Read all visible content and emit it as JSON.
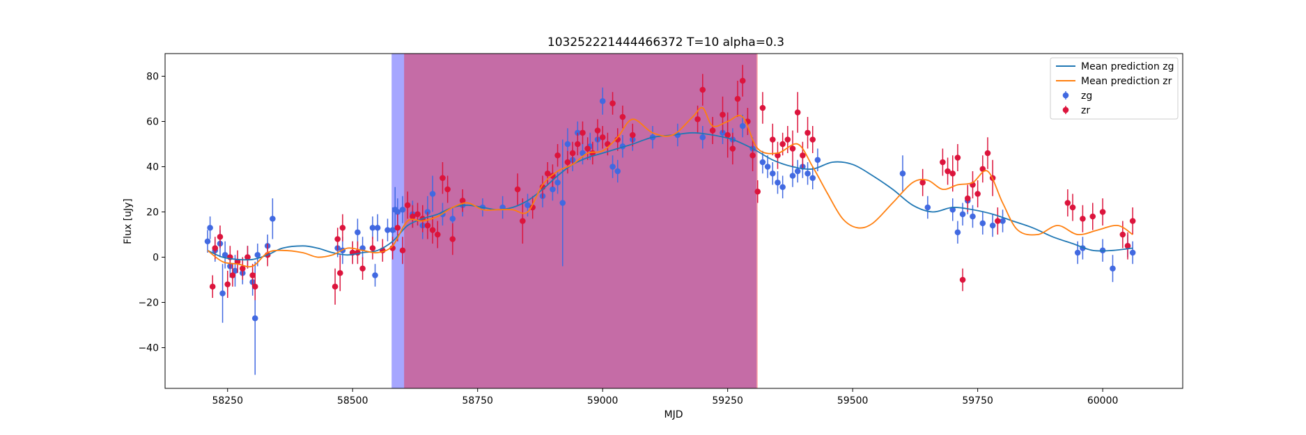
{
  "chart_data": {
    "type": "scatter",
    "title": "103252221444466372 T=10 alpha=0.3",
    "xlabel": "MJD",
    "ylabel": "Flux [uJy]",
    "xlim": [
      58125,
      60160
    ],
    "ylim": [
      -58,
      90
    ],
    "x_ticks": [
      58250,
      58500,
      58750,
      59000,
      59250,
      59500,
      59750,
      60000
    ],
    "y_ticks": [
      -40,
      -20,
      0,
      20,
      40,
      60,
      80
    ],
    "grid": false,
    "legend_position": "top-right",
    "shaded_regions": [
      {
        "band": "zg",
        "x_start": 58578,
        "x_end": 59308,
        "color": "#0000ff",
        "opacity": 0.35
      },
      {
        "band": "zr",
        "x_start": 58603,
        "x_end": 59310,
        "color": "#ff0000",
        "opacity": 0.35
      }
    ],
    "lines": [
      {
        "name": "Mean prediction zg",
        "color": "#1f77b4",
        "x": [
          58210,
          58240,
          58270,
          58300,
          58330,
          58360,
          58400,
          58430,
          58460,
          58490,
          58520,
          58550,
          58580,
          58610,
          58640,
          58670,
          58700,
          58730,
          58760,
          58790,
          58820,
          58850,
          58880,
          58910,
          58940,
          58970,
          59000,
          59030,
          59060,
          59100,
          59140,
          59180,
          59220,
          59260,
          59300,
          59340,
          59380,
          59420,
          59460,
          59500,
          59540,
          59580,
          59620,
          59660,
          59700,
          59740,
          59780,
          59820,
          59860,
          59900,
          59940,
          59980,
          60020,
          60060
        ],
        "y": [
          3,
          0,
          -1,
          -1,
          1,
          4,
          5,
          4,
          2,
          1,
          2,
          3,
          7,
          14,
          17,
          19,
          22,
          23,
          22,
          21,
          22,
          25,
          30,
          36,
          41,
          44,
          46,
          48,
          50,
          53,
          54,
          55,
          54,
          52,
          48,
          43,
          40,
          39,
          42,
          41,
          36,
          30,
          23,
          20,
          22,
          21,
          19,
          16,
          13,
          9,
          6,
          3,
          3,
          4
        ]
      },
      {
        "name": "Mean prediction zr",
        "color": "#ff7f0e",
        "x": [
          58210,
          58240,
          58270,
          58300,
          58330,
          58360,
          58400,
          58430,
          58460,
          58490,
          58520,
          58550,
          58580,
          58610,
          58640,
          58670,
          58700,
          58730,
          58760,
          58790,
          58820,
          58850,
          58880,
          58910,
          58940,
          58970,
          59000,
          59030,
          59060,
          59100,
          59140,
          59180,
          59200,
          59220,
          59250,
          59280,
          59310,
          59350,
          59390,
          59420,
          59450,
          59480,
          59510,
          59540,
          59580,
          59620,
          59650,
          59680,
          59710,
          59740,
          59770,
          59800,
          59830,
          59870,
          59910,
          59950,
          59990,
          60030,
          60060
        ],
        "y": [
          3,
          -2,
          -3,
          -4,
          2,
          3,
          2,
          0,
          1,
          4,
          3,
          2,
          5,
          16,
          16,
          18,
          22,
          24,
          21,
          21,
          21,
          20,
          32,
          38,
          41,
          46,
          47,
          53,
          61,
          55,
          54,
          62,
          66,
          58,
          60,
          62,
          48,
          46,
          50,
          40,
          28,
          17,
          13,
          15,
          24,
          33,
          34,
          30,
          32,
          33,
          38,
          24,
          12,
          10,
          14,
          10,
          12,
          14,
          10
        ]
      }
    ],
    "series": [
      {
        "name": "zg",
        "color": "#4169e1",
        "x": [
          58210,
          58215,
          58225,
          58235,
          58240,
          58245,
          58255,
          58265,
          58280,
          58290,
          58300,
          58305,
          58310,
          58330,
          58340,
          58470,
          58480,
          58500,
          58510,
          58520,
          58540,
          58545,
          58550,
          58570,
          58580,
          58585,
          58590,
          58600,
          58620,
          58640,
          58650,
          58660,
          58680,
          58700,
          58720,
          58760,
          58800,
          58850,
          58880,
          58900,
          58910,
          58920,
          58930,
          58940,
          58950,
          58960,
          58975,
          58990,
          59000,
          59020,
          59030,
          59040,
          59060,
          59100,
          59150,
          59200,
          59240,
          59260,
          59280,
          59300,
          59320,
          59330,
          59340,
          59350,
          59360,
          59380,
          59390,
          59400,
          59410,
          59420,
          59430,
          59600,
          59650,
          59700,
          59710,
          59720,
          59730,
          59740,
          59760,
          59780,
          59800,
          59950,
          59960,
          60000,
          60020,
          60050,
          60060
        ],
        "y": [
          7,
          13,
          3,
          6,
          -16,
          1,
          -4,
          -6,
          -7,
          0,
          -11,
          -27,
          1,
          5,
          17,
          4,
          3,
          2,
          11,
          4,
          13,
          -8,
          13,
          12,
          12,
          21,
          20,
          21,
          19,
          14,
          20,
          28,
          19,
          17,
          23,
          22,
          22,
          23,
          27,
          30,
          33,
          24,
          50,
          43,
          55,
          46,
          49,
          52,
          69,
          40,
          38,
          49,
          52,
          53,
          54,
          53,
          55,
          52,
          58,
          48,
          42,
          40,
          37,
          33,
          31,
          36,
          38,
          40,
          37,
          35,
          43,
          37,
          22,
          21,
          11,
          19,
          25,
          18,
          15,
          14,
          16,
          2,
          4,
          3,
          -5,
          5,
          2
        ],
        "yerr": [
          5,
          5,
          5,
          6,
          13,
          6,
          5,
          7,
          5,
          5,
          6,
          25,
          5,
          5,
          9,
          4,
          6,
          5,
          6,
          5,
          5,
          5,
          6,
          5,
          10,
          10,
          6,
          6,
          6,
          6,
          7,
          8,
          5,
          5,
          5,
          4,
          5,
          5,
          5,
          5,
          5,
          28,
          7,
          5,
          5,
          5,
          6,
          5,
          6,
          5,
          5,
          5,
          5,
          5,
          5,
          5,
          5,
          5,
          5,
          5,
          5,
          5,
          5,
          5,
          5,
          5,
          5,
          5,
          5,
          5,
          5,
          8,
          5,
          5,
          5,
          5,
          6,
          5,
          5,
          5,
          5,
          5,
          5,
          5,
          6,
          5,
          5
        ]
      },
      {
        "name": "zr",
        "color": "#dc143c",
        "x": [
          58220,
          58225,
          58235,
          58250,
          58255,
          58260,
          58270,
          58280,
          58290,
          58300,
          58305,
          58330,
          58465,
          58470,
          58475,
          58480,
          58500,
          58510,
          58520,
          58540,
          58560,
          58580,
          58590,
          58600,
          58610,
          58620,
          58630,
          58640,
          58650,
          58660,
          58670,
          58680,
          58690,
          58700,
          58720,
          58830,
          58840,
          58860,
          58880,
          58890,
          58900,
          58910,
          58930,
          58940,
          58950,
          58960,
          58970,
          58980,
          58990,
          59000,
          59010,
          59020,
          59030,
          59040,
          59060,
          59190,
          59200,
          59220,
          59240,
          59250,
          59260,
          59270,
          59280,
          59290,
          59300,
          59310,
          59320,
          59340,
          59350,
          59360,
          59370,
          59380,
          59390,
          59400,
          59410,
          59420,
          59640,
          59680,
          59690,
          59700,
          59710,
          59720,
          59730,
          59740,
          59750,
          59760,
          59770,
          59780,
          59790,
          59930,
          59940,
          59960,
          59980,
          60000,
          60040,
          60050,
          60060
        ],
        "y": [
          -13,
          4,
          9,
          -12,
          0,
          -8,
          -2,
          -5,
          0,
          -8,
          -13,
          1,
          -13,
          8,
          -7,
          13,
          2,
          2,
          -5,
          4,
          3,
          4,
          13,
          3,
          23,
          18,
          19,
          17,
          14,
          12,
          10,
          35,
          30,
          8,
          25,
          30,
          16,
          22,
          31,
          37,
          36,
          45,
          42,
          46,
          50,
          55,
          48,
          46,
          56,
          53,
          50,
          68,
          52,
          62,
          54,
          61,
          74,
          56,
          63,
          54,
          48,
          70,
          78,
          60,
          45,
          29,
          66,
          52,
          45,
          50,
          52,
          48,
          64,
          45,
          55,
          52,
          33,
          42,
          38,
          37,
          44,
          -10,
          26,
          32,
          28,
          39,
          46,
          35,
          16,
          24,
          22,
          17,
          18,
          20,
          10,
          5,
          16
        ],
        "yerr": [
          5,
          5,
          5,
          6,
          5,
          5,
          5,
          5,
          5,
          5,
          6,
          5,
          8,
          5,
          8,
          6,
          5,
          5,
          5,
          5,
          5,
          5,
          6,
          6,
          6,
          5,
          5,
          6,
          6,
          6,
          6,
          7,
          6,
          7,
          5,
          7,
          10,
          5,
          5,
          5,
          5,
          5,
          5,
          5,
          5,
          5,
          5,
          5,
          5,
          5,
          5,
          5,
          5,
          5,
          5,
          6,
          7,
          6,
          8,
          10,
          7,
          8,
          7,
          6,
          7,
          5,
          7,
          7,
          6,
          5,
          6,
          8,
          9,
          6,
          7,
          6,
          6,
          6,
          6,
          8,
          6,
          5,
          6,
          6,
          6,
          6,
          7,
          8,
          6,
          6,
          6,
          6,
          6,
          6,
          6,
          6,
          6
        ]
      }
    ],
    "legend": [
      {
        "label": "Mean prediction zg",
        "kind": "line",
        "color": "#1f77b4"
      },
      {
        "label": "Mean prediction zr",
        "kind": "line",
        "color": "#ff7f0e"
      },
      {
        "label": "zg",
        "kind": "marker",
        "color": "#4169e1"
      },
      {
        "label": "zr",
        "kind": "marker",
        "color": "#dc143c"
      }
    ]
  }
}
